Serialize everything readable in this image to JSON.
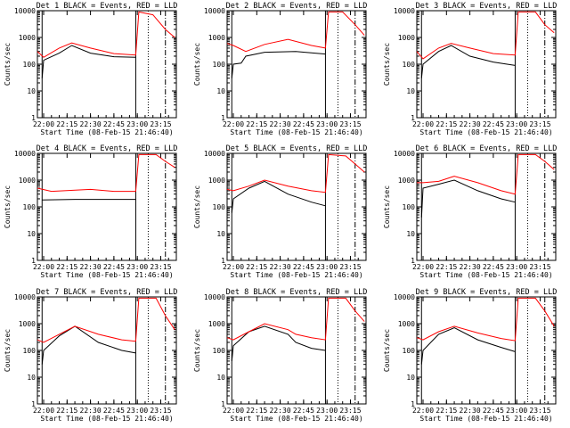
{
  "chart_data": {
    "type": "line",
    "yscale": "log",
    "ylim": [
      1,
      10000
    ],
    "xlim": [
      "21:56",
      "23:25"
    ],
    "ylabel": "Counts/sec",
    "xlabel": "Start Time (08-Feb-15 21:46:40)",
    "x_ticks": [
      "22:00",
      "22:15",
      "22:30",
      "22:45",
      "23:00",
      "23:15"
    ],
    "y_ticks": [
      "1",
      "10",
      "100",
      "1000",
      "10000"
    ],
    "legend_text": "BLACK = Events, RED = LLD",
    "series_colors": {
      "events": "#000000",
      "lld": "#ff0000"
    },
    "vertical_markers": {
      "solid": [
        "21:59",
        "22:59"
      ],
      "dotted": [
        "23:07"
      ],
      "dashdot": [
        "23:18"
      ]
    },
    "panels": [
      {
        "title": "Det 1",
        "events": [
          [
            "21:59",
            30
          ],
          [
            "22:00",
            140
          ],
          [
            "22:10",
            260
          ],
          [
            "22:18",
            500
          ],
          [
            "22:30",
            260
          ],
          [
            "22:45",
            190
          ],
          [
            "22:59",
            180
          ]
        ],
        "lld": [
          [
            "21:56",
            300
          ],
          [
            "22:00",
            180
          ],
          [
            "22:10",
            400
          ],
          [
            "22:18",
            620
          ],
          [
            "22:30",
            400
          ],
          [
            "22:45",
            250
          ],
          [
            "22:59",
            220
          ],
          [
            "23:01",
            9000
          ],
          [
            "23:10",
            7000
          ],
          [
            "23:18",
            2000
          ],
          [
            "23:24",
            1000
          ]
        ]
      },
      {
        "title": "Det 2",
        "events": [
          [
            "21:59",
            30
          ],
          [
            "22:00",
            100
          ],
          [
            "22:05",
            110
          ],
          [
            "22:08",
            200
          ],
          [
            "22:20",
            280
          ],
          [
            "22:40",
            300
          ],
          [
            "22:59",
            240
          ]
        ],
        "lld": [
          [
            "21:56",
            600
          ],
          [
            "22:00",
            500
          ],
          [
            "22:08",
            300
          ],
          [
            "22:20",
            550
          ],
          [
            "22:35",
            850
          ],
          [
            "22:50",
            500
          ],
          [
            "22:59",
            400
          ],
          [
            "23:01",
            9000
          ],
          [
            "23:10",
            9000
          ],
          [
            "23:18",
            3000
          ],
          [
            "23:24",
            1200
          ]
        ]
      },
      {
        "title": "Det 3",
        "events": [
          [
            "21:59",
            30
          ],
          [
            "22:00",
            100
          ],
          [
            "22:10",
            300
          ],
          [
            "22:18",
            500
          ],
          [
            "22:30",
            200
          ],
          [
            "22:45",
            120
          ],
          [
            "22:59",
            90
          ]
        ],
        "lld": [
          [
            "21:56",
            300
          ],
          [
            "22:00",
            160
          ],
          [
            "22:10",
            400
          ],
          [
            "22:18",
            600
          ],
          [
            "22:30",
            400
          ],
          [
            "22:45",
            250
          ],
          [
            "22:59",
            220
          ],
          [
            "23:01",
            9000
          ],
          [
            "23:12",
            9000
          ],
          [
            "23:18",
            3000
          ],
          [
            "23:24",
            1500
          ]
        ]
      },
      {
        "title": "Det 4",
        "events": [
          [
            "21:59",
            180
          ],
          [
            "22:20",
            190
          ],
          [
            "22:45",
            190
          ],
          [
            "22:59",
            190
          ]
        ],
        "lld": [
          [
            "21:56",
            500
          ],
          [
            "22:05",
            380
          ],
          [
            "22:30",
            450
          ],
          [
            "22:45",
            380
          ],
          [
            "22:59",
            380
          ],
          [
            "23:01",
            9000
          ],
          [
            "23:12",
            9000
          ],
          [
            "23:18",
            5000
          ],
          [
            "23:24",
            3000
          ]
        ]
      },
      {
        "title": "Det 5",
        "events": [
          [
            "21:59",
            60
          ],
          [
            "22:00",
            200
          ],
          [
            "22:10",
            500
          ],
          [
            "22:20",
            900
          ],
          [
            "22:35",
            300
          ],
          [
            "22:50",
            150
          ],
          [
            "22:59",
            110
          ]
        ],
        "lld": [
          [
            "21:56",
            450
          ],
          [
            "22:00",
            400
          ],
          [
            "22:10",
            600
          ],
          [
            "22:20",
            1000
          ],
          [
            "22:35",
            600
          ],
          [
            "22:50",
            400
          ],
          [
            "22:59",
            350
          ],
          [
            "23:01",
            9000
          ],
          [
            "23:12",
            8000
          ],
          [
            "23:18",
            4000
          ],
          [
            "23:24",
            2000
          ]
        ]
      },
      {
        "title": "Det 6",
        "events": [
          [
            "21:59",
            40
          ],
          [
            "22:00",
            500
          ],
          [
            "22:10",
            700
          ],
          [
            "22:20",
            1000
          ],
          [
            "22:35",
            400
          ],
          [
            "22:50",
            200
          ],
          [
            "22:59",
            150
          ]
        ],
        "lld": [
          [
            "21:56",
            800
          ],
          [
            "22:00",
            800
          ],
          [
            "22:10",
            900
          ],
          [
            "22:20",
            1400
          ],
          [
            "22:35",
            800
          ],
          [
            "22:50",
            400
          ],
          [
            "22:59",
            300
          ],
          [
            "23:01",
            9000
          ],
          [
            "23:12",
            9000
          ],
          [
            "23:18",
            5000
          ],
          [
            "23:24",
            2500
          ]
        ]
      },
      {
        "title": "Det 7",
        "events": [
          [
            "21:59",
            30
          ],
          [
            "22:00",
            100
          ],
          [
            "22:10",
            350
          ],
          [
            "22:20",
            800
          ],
          [
            "22:35",
            200
          ],
          [
            "22:50",
            100
          ],
          [
            "22:59",
            80
          ]
        ],
        "lld": [
          [
            "21:56",
            250
          ],
          [
            "22:00",
            200
          ],
          [
            "22:10",
            400
          ],
          [
            "22:20",
            800
          ],
          [
            "22:35",
            400
          ],
          [
            "22:50",
            250
          ],
          [
            "22:59",
            220
          ],
          [
            "23:01",
            9000
          ],
          [
            "23:12",
            9000
          ],
          [
            "23:18",
            2000
          ],
          [
            "23:24",
            600
          ]
        ]
      },
      {
        "title": "Det 8",
        "events": [
          [
            "21:59",
            40
          ],
          [
            "22:00",
            150
          ],
          [
            "22:10",
            500
          ],
          [
            "22:20",
            800
          ],
          [
            "22:35",
            400
          ],
          [
            "22:40",
            200
          ],
          [
            "22:50",
            120
          ],
          [
            "22:59",
            100
          ]
        ],
        "lld": [
          [
            "21:56",
            300
          ],
          [
            "22:00",
            250
          ],
          [
            "22:10",
            500
          ],
          [
            "22:20",
            1000
          ],
          [
            "22:35",
            600
          ],
          [
            "22:40",
            400
          ],
          [
            "22:50",
            300
          ],
          [
            "22:59",
            250
          ],
          [
            "23:01",
            9000
          ],
          [
            "23:12",
            9000
          ],
          [
            "23:18",
            3000
          ],
          [
            "23:24",
            1200
          ]
        ]
      },
      {
        "title": "Det 9",
        "events": [
          [
            "21:59",
            30
          ],
          [
            "22:00",
            100
          ],
          [
            "22:10",
            400
          ],
          [
            "22:20",
            700
          ],
          [
            "22:35",
            250
          ],
          [
            "22:50",
            130
          ],
          [
            "22:59",
            90
          ]
        ],
        "lld": [
          [
            "21:56",
            300
          ],
          [
            "22:00",
            250
          ],
          [
            "22:10",
            500
          ],
          [
            "22:20",
            800
          ],
          [
            "22:35",
            450
          ],
          [
            "22:50",
            280
          ],
          [
            "22:59",
            230
          ],
          [
            "23:01",
            9000
          ],
          [
            "23:12",
            9000
          ],
          [
            "23:18",
            3000
          ],
          [
            "23:24",
            800
          ]
        ]
      }
    ]
  }
}
